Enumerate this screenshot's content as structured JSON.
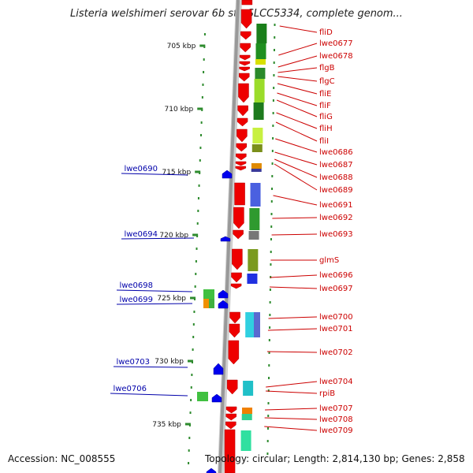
{
  "title": "Listeria welshimeri serovar 6b str. SLCC5334, complete genom...",
  "footer": {
    "accession": "Accession: NC_008555",
    "summary": "Topology: circular; Length: 2,814,130 bp; Genes: 2,858"
  },
  "colors": {
    "backbone": "#999999",
    "tick": "#2e8b2e",
    "gene_label_right": "#cc0000",
    "gene_label_left": "#0000aa",
    "forward_gene": "#ee0000",
    "reverse_gene": "#0000ee"
  },
  "scale_ticks": [
    "705 kbp",
    "710 kbp",
    "715 kbp",
    "720 kbp",
    "725 kbp",
    "730 kbp",
    "735 kbp"
  ],
  "genes_right": [
    "fliD",
    "lwe0677",
    "lwe0678",
    "flgB",
    "flgC",
    "fliE",
    "fliF",
    "fliG",
    "fliH",
    "fliI",
    "lwe0686",
    "lwe0687",
    "lwe0688",
    "lwe0689",
    "lwe0691",
    "lwe0692",
    "lwe0693",
    "glmS",
    "lwe0696",
    "lwe0697",
    "lwe0700",
    "lwe0701",
    "lwe0702",
    "lwe0704",
    "rpiB",
    "lwe0707",
    "lwe0708",
    "lwe0709"
  ],
  "genes_left": [
    "lwe0690",
    "lwe0694",
    "lwe0698",
    "lwe0699",
    "lwe0703",
    "lwe0706"
  ]
}
